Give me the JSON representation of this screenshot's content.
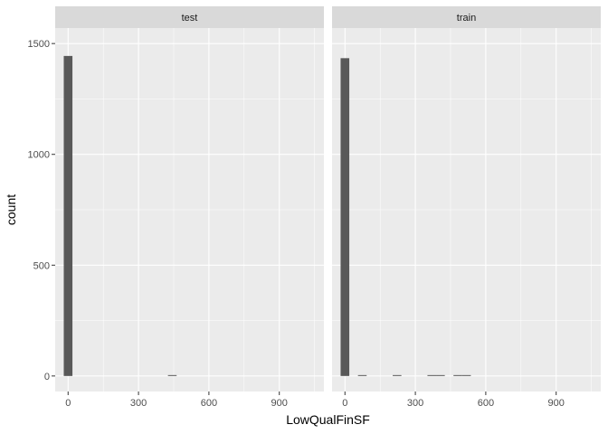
{
  "chart_data": {
    "type": "bar",
    "xlabel": "LowQualFinSF",
    "ylabel": "count",
    "x_ticks": [
      0,
      300,
      600,
      900
    ],
    "y_ticks": [
      0,
      500,
      1000,
      1500
    ],
    "xlim": [
      -55,
      1090
    ],
    "ylim": [
      -70,
      1570
    ],
    "grid": true,
    "bin_width": 37,
    "colors": {
      "bar": "#595959",
      "panel": "#ebebeb",
      "strip": "#d9d9d9",
      "grid": "#ffffff"
    },
    "panels": [
      {
        "label": "test",
        "bins": [
          {
            "x": 0,
            "count": 1444
          },
          {
            "x": 444,
            "count": 4
          }
        ]
      },
      {
        "label": "train",
        "bins": [
          {
            "x": 0,
            "count": 1434
          },
          {
            "x": 74,
            "count": 3
          },
          {
            "x": 222,
            "count": 3
          },
          {
            "x": 370,
            "count": 3
          },
          {
            "x": 407,
            "count": 3
          },
          {
            "x": 481,
            "count": 3
          },
          {
            "x": 518,
            "count": 3
          }
        ]
      }
    ]
  }
}
